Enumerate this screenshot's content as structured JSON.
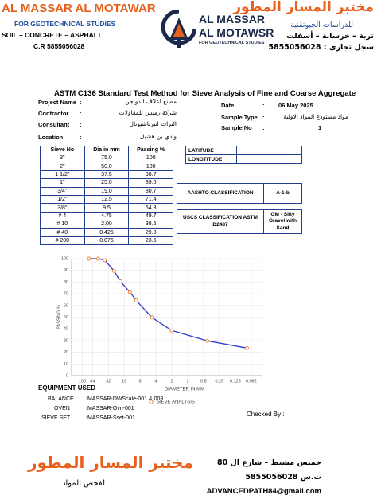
{
  "header": {
    "left": {
      "title": "AL MASSAR AL MOTAWAR",
      "subtitle": "FOR GEOTECHNICAL STUDIES",
      "materials": "SOIL – CONCRETE – ASPHALT",
      "cr": "C.R 5855056028"
    },
    "logo": {
      "line1": "AL MASSAR",
      "line2": "AL MOTAWSR",
      "tagline": "FOR GEOTECHNICAL STUDIES"
    },
    "right": {
      "title": "مختبر المسار المطور",
      "subtitle": "للدراسات الجيوتقنية",
      "materials": "تربة – خرسانة – أسفلت",
      "cr": "سجل تجارى : 5855056028"
    }
  },
  "report": {
    "title": "ASTM C136 Standard Test Method for Sieve Analysis of Fine and Coarse Aggregate"
  },
  "info": {
    "separator": ":",
    "left": [
      {
        "label": "Project Name",
        "value": "مصنع اعلاف الدواجن"
      },
      {
        "label": "Contractor",
        "value": "شركة رميس للمقاولات"
      },
      {
        "label": "Consultant",
        "value": "التراث انترناشيونال"
      },
      {
        "label": "Location",
        "value": "وادي بن هشيل"
      }
    ],
    "right": [
      {
        "label": "Date",
        "value": "06 May 2025"
      },
      {
        "label": "Sample Type",
        "value": "مواد مستودع المواد الاولية"
      },
      {
        "label": "Sample No",
        "value": "1"
      }
    ]
  },
  "sieve_table": {
    "columns": [
      "Sieve No",
      "Dia in mm",
      "Passing %"
    ],
    "rows": [
      [
        "3\"",
        "75.0",
        "100"
      ],
      [
        "2\"",
        "50.0",
        "100"
      ],
      [
        "1 1/2\"",
        "37.5",
        "98.7"
      ],
      [
        "1\"",
        "25.0",
        "89.6"
      ],
      [
        "3/4\"",
        "19.0",
        "80.7"
      ],
      [
        "1/2\"",
        "12.5",
        "71.4"
      ],
      [
        "3/8\"",
        "9.5",
        "64.3"
      ],
      [
        "# 4",
        "4.75",
        "49.7"
      ],
      [
        "# 10",
        "2.00",
        "38.6"
      ],
      [
        "# 40",
        "0.425",
        "29.8"
      ],
      [
        "# 200",
        "0.075",
        "23.6"
      ]
    ]
  },
  "location_box": [
    "LATITUDE",
    "LONGTITUDE"
  ],
  "classification": [
    {
      "label": "AASHTO CLASSIFICATION",
      "value": "A-1-b"
    },
    {
      "label": "USCS CLASSIFICATION ASTM D2487",
      "value": "GM - Silty Gravel with Sand"
    }
  ],
  "chart_data": {
    "type": "line",
    "xlabel": "DIAMETER IN MM",
    "ylabel": "PASSING %",
    "x": [
      75,
      50,
      37.5,
      25,
      19,
      12.5,
      9.5,
      4.75,
      2,
      0.425,
      0.075
    ],
    "series": [
      {
        "name": "SIEVE ANALYSIS",
        "color": "#2f3fc8",
        "marker_color": "#f07a2a",
        "values": [
          100,
          100,
          98.7,
          89.6,
          80.7,
          71.4,
          64.3,
          49.7,
          38.6,
          29.8,
          23.6
        ]
      }
    ],
    "xlog": true,
    "xlim": [
      160,
      0.038
    ],
    "xticks": [
      100,
      64,
      32,
      16,
      8,
      4,
      2,
      1,
      0.5,
      0.25,
      0.125,
      0.062
    ],
    "ylim": [
      0,
      100
    ],
    "yticks": [
      0,
      10,
      20,
      30,
      40,
      50,
      60,
      70,
      80,
      90,
      100
    ],
    "grid": true
  },
  "equipment": {
    "title": "EQUIPMENT USED",
    "items": [
      {
        "label": "BALANCE",
        "value": ":MASSAR-DWScale-001 & 003"
      },
      {
        "label": "OVEN",
        "value": ":MASSAR-Ovn-001"
      },
      {
        "label": "SIEVE SET",
        "value": ":MASSAR-Sset-001"
      }
    ]
  },
  "checked_by": "Checked By :",
  "footer": {
    "title": "مختبر المسار المطور",
    "subtitle": "لفحص المواد",
    "address": "خميس مشيط – شارع ال 80",
    "cr": "ت.س 5855056028",
    "email": "ADVANCEDPATH84@gmail.com"
  }
}
